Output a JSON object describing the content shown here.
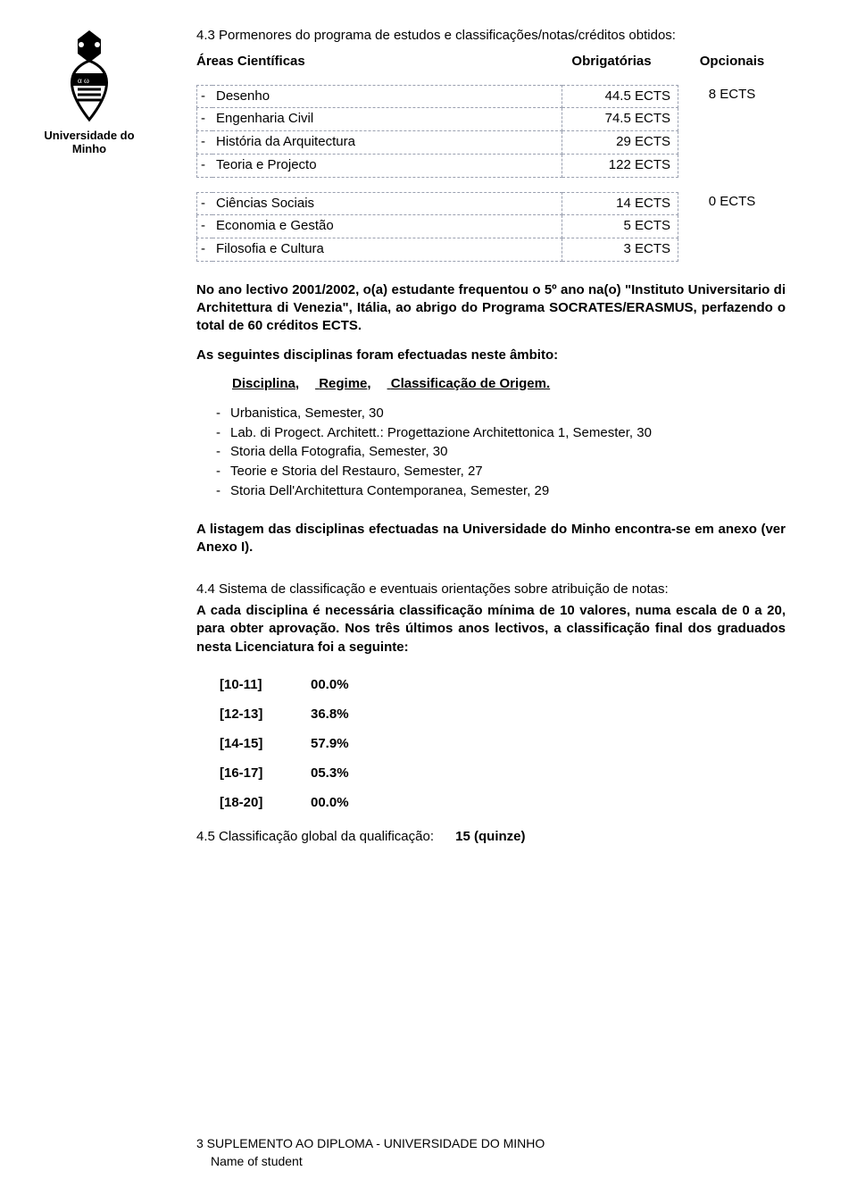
{
  "logo": {
    "label": "Universidade do Minho"
  },
  "sec43": {
    "title_line": "4.3 Pormenores do programa de estudos e classificações/notas/créditos obtidos:",
    "areas_label": "Áreas Científicas",
    "col_obrig": "Obrigatórias",
    "col_opc": "Opcionais",
    "group1": {
      "rows": [
        {
          "name": "Desenho",
          "ects": "44.5 ECTS"
        },
        {
          "name": "Engenharia Civil",
          "ects": "74.5 ECTS"
        },
        {
          "name": "História da Arquitectura",
          "ects": "29 ECTS"
        },
        {
          "name": "Teoria e Projecto",
          "ects": "122 ECTS"
        }
      ],
      "side": "8 ECTS"
    },
    "group2": {
      "rows": [
        {
          "name": "Ciências Sociais",
          "ects": "14 ECTS"
        },
        {
          "name": "Economia e Gestão",
          "ects": "5 ECTS"
        },
        {
          "name": "Filosofia e Cultura",
          "ects": "3 ECTS"
        }
      ],
      "side": "0 ECTS"
    },
    "erasmus_para": "No ano lectivo 2001/2002, o(a) estudante frequentou o 5º ano na(o) \"Instituto Universitario di Architettura di Venezia\", Itália, ao abrigo do Programa SOCRATES/ERASMUS, perfazendo o total de 60 créditos ECTS.",
    "ambito_intro": "As seguintes disciplinas foram efectuadas neste âmbito:",
    "disc_head": {
      "a": "Disciplina,",
      "b": "Regime,",
      "c": "Classificação de Origem."
    },
    "disciplinas": [
      "Urbanistica, Semester, 30",
      "Lab. di Progect. Architett.: Progettazione Architettonica 1, Semester, 30",
      "Storia della Fotografia, Semester, 30",
      "Teorie e Storia del Restauro, Semester, 27",
      "Storia Dell'Architettura Contemporanea, Semester, 29"
    ],
    "anexo_para": "A listagem das disciplinas efectuadas na Universidade do Minho encontra-se em anexo (ver Anexo I)."
  },
  "sec44": {
    "lead": "4.4 Sistema de classificação e eventuais orientações sobre atribuição de notas:",
    "para": "A cada disciplina é necessária classificação mínima de 10 valores, numa escala de 0 a 20, para obter aprovação. Nos três últimos anos lectivos, a classificação final dos graduados nesta Licenciatura foi a seguinte:",
    "grades": [
      {
        "range": "[10-11]",
        "pct": "00.0%"
      },
      {
        "range": "[12-13]",
        "pct": "36.8%"
      },
      {
        "range": "[14-15]",
        "pct": "57.9%"
      },
      {
        "range": "[16-17]",
        "pct": "05.3%"
      },
      {
        "range": "[18-20]",
        "pct": "00.0%"
      }
    ]
  },
  "sec45": {
    "label": "4.5 Classificação global da qualificação:",
    "value": "15 (quinze)"
  },
  "footer": {
    "line1": "3 SUPLEMENTO AO DIPLOMA - UNIVERSIDADE DO MINHO",
    "line2": "Name of student"
  },
  "colors": {
    "text": "#000000",
    "table_border": "#9aa0b0",
    "background": "#ffffff"
  }
}
